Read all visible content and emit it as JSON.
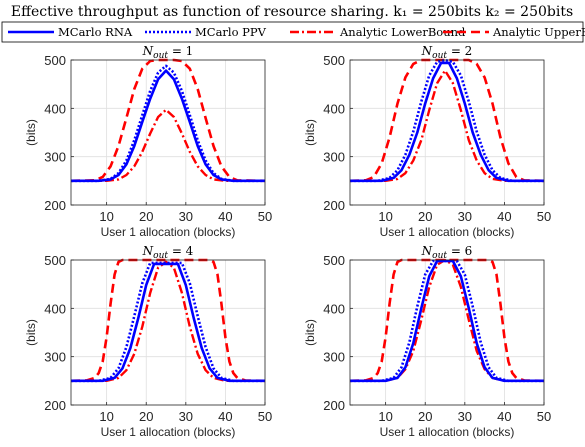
{
  "figure_title": "Effective throughput as function of resource sharing. k₁ = 250bits k₂ = 250bits",
  "legend": {
    "placement": "top, horizontal",
    "entries": [
      {
        "label": "MCarlo RNA",
        "color": "#0000ff",
        "style": "solid"
      },
      {
        "label": "MCarlo PPV",
        "color": "#0000ff",
        "style": "dotted"
      },
      {
        "label": "Analytic LowerBound",
        "color": "#ff0000",
        "style": "dashdot"
      },
      {
        "label": "Analytic UpperBound",
        "color": "#ff0000",
        "style": "dashed"
      }
    ]
  },
  "chart_data": [
    {
      "type": "line",
      "title": "N_out = 1",
      "xlabel": "User 1 allocation (blocks)",
      "ylabel": "(bits)",
      "xlim": [
        1,
        50
      ],
      "ylim": [
        200,
        500
      ],
      "xticks": [
        10,
        20,
        30,
        40,
        50
      ],
      "yticks": [
        200,
        300,
        400,
        500
      ],
      "grid": true,
      "series": [
        {
          "name": "MCarlo RNA",
          "x": [
            1,
            8,
            11,
            13,
            15,
            17,
            19,
            21,
            23,
            25,
            27,
            29,
            31,
            33,
            35,
            37,
            39,
            42,
            50
          ],
          "y": [
            250,
            250,
            253,
            262,
            284,
            322,
            372,
            420,
            460,
            478,
            460,
            420,
            372,
            322,
            284,
            262,
            253,
            250,
            250
          ]
        },
        {
          "name": "MCarlo PPV",
          "x": [
            1,
            8,
            11,
            13,
            15,
            17,
            19,
            21,
            23,
            25,
            27,
            29,
            31,
            33,
            35,
            37,
            39,
            42,
            50
          ],
          "y": [
            250,
            250,
            254,
            266,
            292,
            334,
            386,
            436,
            474,
            488,
            474,
            436,
            386,
            334,
            292,
            266,
            254,
            250,
            250
          ]
        },
        {
          "name": "Analytic LowerBound",
          "x": [
            1,
            10,
            13,
            15,
            17,
            19,
            21,
            23,
            25,
            27,
            29,
            31,
            33,
            35,
            37,
            40,
            50
          ],
          "y": [
            250,
            250,
            253,
            262,
            280,
            310,
            348,
            382,
            397,
            382,
            348,
            310,
            280,
            262,
            253,
            250,
            250
          ]
        },
        {
          "name": "Analytic UpperBound",
          "x": [
            1,
            7,
            9,
            11,
            13,
            15,
            17,
            19,
            21,
            23,
            27,
            29,
            31,
            33,
            35,
            37,
            39,
            41,
            43,
            50
          ],
          "y": [
            250,
            251,
            258,
            280,
            322,
            380,
            440,
            482,
            498,
            500,
            500,
            498,
            482,
            440,
            380,
            322,
            280,
            258,
            251,
            250
          ]
        }
      ]
    },
    {
      "type": "line",
      "title": "N_out = 2",
      "xlabel": "User 1 allocation (blocks)",
      "ylabel": "(bits)",
      "xlim": [
        1,
        50
      ],
      "ylim": [
        200,
        500
      ],
      "xticks": [
        10,
        20,
        30,
        40,
        50
      ],
      "yticks": [
        200,
        300,
        400,
        500
      ],
      "grid": true,
      "series": [
        {
          "name": "MCarlo RNA",
          "x": [
            1,
            9,
            12,
            14,
            16,
            18,
            20,
            22,
            24,
            26,
            28,
            30,
            32,
            34,
            36,
            38,
            41,
            50
          ],
          "y": [
            250,
            250,
            256,
            272,
            304,
            350,
            410,
            462,
            494,
            494,
            462,
            410,
            350,
            304,
            272,
            256,
            250,
            250
          ]
        },
        {
          "name": "MCarlo PPV",
          "x": [
            1,
            8,
            11,
            13,
            15,
            17,
            19,
            21,
            23,
            25,
            27,
            29,
            31,
            33,
            35,
            37,
            39,
            42,
            50
          ],
          "y": [
            250,
            250,
            256,
            272,
            304,
            352,
            414,
            468,
            496,
            500,
            496,
            468,
            414,
            352,
            304,
            272,
            256,
            250,
            250
          ]
        },
        {
          "name": "Analytic LowerBound",
          "x": [
            1,
            10,
            13,
            15,
            17,
            19,
            21,
            23,
            25,
            27,
            29,
            31,
            33,
            35,
            37,
            40,
            50
          ],
          "y": [
            250,
            250,
            254,
            266,
            292,
            334,
            396,
            452,
            478,
            452,
            396,
            334,
            292,
            266,
            254,
            250,
            250
          ]
        },
        {
          "name": "Analytic UpperBound",
          "x": [
            1,
            5,
            7,
            9,
            11,
            13,
            15,
            17,
            19,
            21,
            29,
            31,
            33,
            35,
            37,
            39,
            41,
            43,
            45,
            50
          ],
          "y": [
            250,
            251,
            258,
            286,
            340,
            410,
            464,
            492,
            500,
            500,
            500,
            500,
            492,
            464,
            410,
            340,
            286,
            258,
            251,
            250
          ]
        }
      ]
    },
    {
      "type": "line",
      "title": "N_out = 4",
      "xlabel": "User 1 allocation (blocks)",
      "ylabel": "(bits)",
      "xlim": [
        1,
        50
      ],
      "ylim": [
        200,
        500
      ],
      "xticks": [
        10,
        20,
        30,
        40,
        50
      ],
      "yticks": [
        200,
        300,
        400,
        500
      ],
      "grid": true,
      "series": [
        {
          "name": "MCarlo RNA",
          "x": [
            1,
            9,
            12,
            14,
            16,
            18,
            20,
            22,
            28,
            30,
            32,
            34,
            36,
            38,
            41,
            50
          ],
          "y": [
            250,
            250,
            256,
            276,
            318,
            380,
            448,
            492,
            492,
            448,
            380,
            318,
            276,
            256,
            250,
            250
          ]
        },
        {
          "name": "MCarlo PPV",
          "x": [
            1,
            8,
            11,
            13,
            15,
            17,
            19,
            21,
            29,
            31,
            33,
            35,
            37,
            39,
            42,
            50
          ],
          "y": [
            250,
            250,
            256,
            276,
            320,
            384,
            452,
            494,
            494,
            452,
            384,
            320,
            276,
            256,
            250,
            250
          ]
        },
        {
          "name": "Analytic LowerBound",
          "x": [
            1,
            10,
            13,
            15,
            17,
            19,
            21,
            23,
            25,
            27,
            29,
            31,
            33,
            35,
            37,
            40,
            50
          ],
          "y": [
            250,
            250,
            256,
            272,
            306,
            362,
            432,
            484,
            496,
            484,
            432,
            362,
            306,
            272,
            256,
            250,
            250
          ]
        },
        {
          "name": "Analytic UpperBound",
          "x": [
            1,
            5,
            7,
            8,
            9,
            10,
            11,
            12,
            13,
            14,
            36,
            37,
            38,
            39,
            40,
            41,
            42,
            43,
            45,
            50
          ],
          "y": [
            250,
            251,
            256,
            266,
            290,
            340,
            410,
            470,
            496,
            500,
            500,
            496,
            470,
            410,
            340,
            290,
            266,
            256,
            251,
            250
          ]
        }
      ]
    },
    {
      "type": "line",
      "title": "N_out = 6",
      "xlabel": "User 1 allocation (blocks)",
      "ylabel": "(bits)",
      "xlim": [
        1,
        50
      ],
      "ylim": [
        200,
        500
      ],
      "xticks": [
        10,
        20,
        30,
        40,
        50
      ],
      "yticks": [
        200,
        300,
        400,
        500
      ],
      "grid": true,
      "series": [
        {
          "name": "MCarlo RNA",
          "x": [
            1,
            10,
            13,
            15,
            17,
            19,
            21,
            23,
            27,
            29,
            31,
            33,
            35,
            37,
            40,
            50
          ],
          "y": [
            250,
            250,
            256,
            278,
            328,
            400,
            466,
            498,
            498,
            466,
            400,
            328,
            278,
            256,
            250,
            250
          ]
        },
        {
          "name": "MCarlo PPV",
          "x": [
            1,
            9,
            12,
            14,
            16,
            18,
            20,
            22,
            28,
            30,
            32,
            34,
            36,
            38,
            41,
            50
          ],
          "y": [
            250,
            250,
            256,
            278,
            330,
            404,
            470,
            498,
            498,
            470,
            404,
            330,
            278,
            256,
            250,
            250
          ]
        },
        {
          "name": "Analytic LowerBound",
          "x": [
            1,
            10,
            13,
            15,
            17,
            19,
            21,
            23,
            25,
            27,
            29,
            31,
            33,
            35,
            37,
            40,
            50
          ],
          "y": [
            250,
            250,
            256,
            274,
            312,
            376,
            444,
            490,
            500,
            490,
            444,
            376,
            312,
            274,
            256,
            250,
            250
          ]
        },
        {
          "name": "Analytic UpperBound",
          "x": [
            1,
            5,
            7,
            8,
            9,
            10,
            11,
            12,
            13,
            14,
            36,
            37,
            38,
            39,
            40,
            41,
            42,
            43,
            45,
            50
          ],
          "y": [
            250,
            251,
            256,
            266,
            290,
            340,
            410,
            470,
            496,
            500,
            500,
            496,
            470,
            410,
            340,
            290,
            266,
            256,
            251,
            250
          ]
        }
      ]
    }
  ]
}
